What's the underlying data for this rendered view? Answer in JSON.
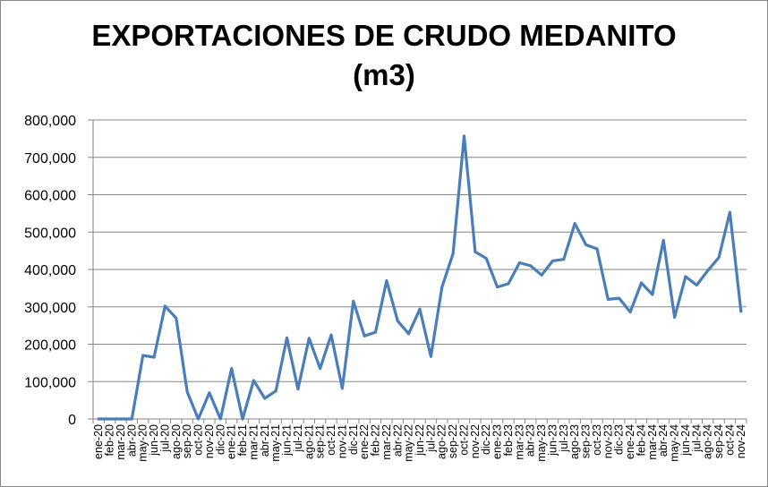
{
  "chart_data": {
    "type": "line",
    "title_line1": "EXPORTACIONES DE CRUDO MEDANITO",
    "title_line2": "(m3)",
    "xlabel": "",
    "ylabel": "",
    "ylim": [
      0,
      800000
    ],
    "y_ticks": [
      0,
      100000,
      200000,
      300000,
      400000,
      500000,
      600000,
      700000,
      800000
    ],
    "y_tick_labels": [
      "0",
      "100,000",
      "200,000",
      "300,000",
      "400,000",
      "500,000",
      "600,000",
      "700,000",
      "800,000"
    ],
    "grid": true,
    "legend": "none",
    "line_color": "#4a7ebb",
    "categories": [
      "ene-20",
      "feb-20",
      "mar-20",
      "abr-20",
      "may-20",
      "jun-20",
      "jul-20",
      "ago-20",
      "sep-20",
      "oct-20",
      "nov-20",
      "dic-20",
      "ene-21",
      "feb-21",
      "mar-21",
      "abr-21",
      "may-21",
      "jun-21",
      "jul-21",
      "ago-21",
      "sep-21",
      "oct-21",
      "nov-21",
      "dic-21",
      "ene-22",
      "feb-22",
      "mar-22",
      "abr-22",
      "may-22",
      "jun-22",
      "jul-22",
      "ago-22",
      "sep-22",
      "oct-22",
      "nov-22",
      "dic-22",
      "ene-23",
      "feb-23",
      "mar-23",
      "abr-23",
      "may-23",
      "jun-23",
      "jul-23",
      "ago-23",
      "sep-23",
      "oct-23",
      "nov-23",
      "dic-23",
      "ene-24",
      "feb-24",
      "mar-24",
      "abr-24",
      "may-24",
      "jun-24",
      "jul-24",
      "ago-24",
      "sep-24",
      "oct-24",
      "nov-24"
    ],
    "series": [
      {
        "values": [
          0,
          0,
          0,
          0,
          170000,
          165000,
          302000,
          270000,
          72000,
          0,
          70000,
          0,
          135000,
          0,
          103000,
          55000,
          75000,
          217000,
          80000,
          216000,
          135000,
          225000,
          82000,
          315000,
          222000,
          232000,
          370000,
          262000,
          228000,
          294000,
          167000,
          352000,
          442000,
          757000,
          447000,
          430000,
          353000,
          362000,
          418000,
          410000,
          385000,
          423000,
          427000,
          523000,
          466000,
          455000,
          320000,
          323000,
          286000,
          364000,
          333000,
          478000,
          272000,
          381000,
          358000,
          397000,
          432000,
          553000,
          288000
        ]
      }
    ]
  }
}
